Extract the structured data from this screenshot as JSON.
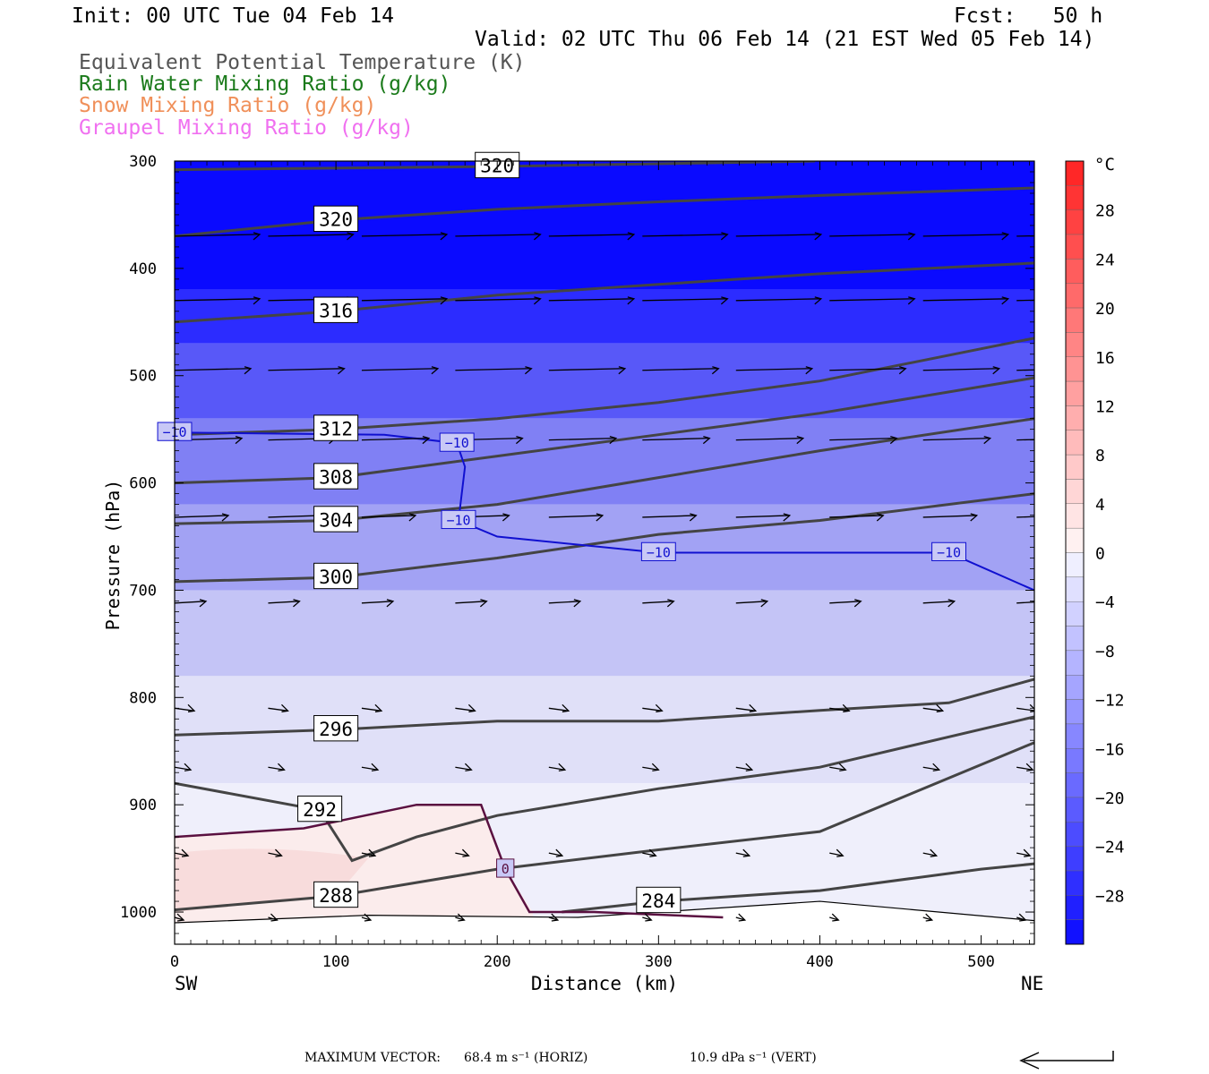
{
  "header": {
    "init": "Init: 00 UTC Tue 04 Feb 14",
    "fcst": "Fcst:   50 h",
    "valid": "Valid: 02 UTC Thu 06 Feb 14 (21 EST Wed 05 Feb 14)"
  },
  "legend": [
    {
      "label": "Equivalent Potential Temperature (K)",
      "color": "#555555"
    },
    {
      "label": "Rain Water Mixing Ratio (g/kg)",
      "color": "#1a7a1a"
    },
    {
      "label": "Snow Mixing Ratio (g/kg)",
      "color": "#f0905a"
    },
    {
      "label": "Graupel Mixing Ratio (g/kg)",
      "color": "#f070f0"
    }
  ],
  "chart_data": {
    "type": "cross-section",
    "xlabel": "Distance (km)",
    "ylabel": "Pressure (hPa)",
    "x_ticks": [
      "0",
      "100",
      "200",
      "300",
      "400",
      "500"
    ],
    "y_ticks": [
      "300",
      "400",
      "500",
      "600",
      "700",
      "800",
      "900",
      "1000"
    ],
    "xlim": [
      0,
      533
    ],
    "ylim": [
      1030,
      300
    ],
    "left_end": "SW",
    "right_end": "NE",
    "colorbar": {
      "unit": "°C",
      "labels": [
        "28",
        "24",
        "20",
        "16",
        "12",
        "8",
        "4",
        "0",
        "−4",
        "−8",
        "−12",
        "−16",
        "−20",
        "−24",
        "−28"
      ],
      "range": [
        -32,
        32
      ],
      "colors_warm": "#ff2020",
      "colors_cold": "#0a0aff"
    },
    "theta_e_contours": [
      {
        "label": "320",
        "points": [
          [
            0,
            370
          ],
          [
            100,
            355
          ],
          [
            200,
            345
          ],
          [
            300,
            338
          ],
          [
            400,
            332
          ],
          [
            533,
            325
          ]
        ]
      },
      {
        "label": "320",
        "points": [
          [
            0,
            308
          ],
          [
            200,
            305
          ],
          [
            397,
            300
          ]
        ]
      },
      {
        "label": "316",
        "points": [
          [
            0,
            450
          ],
          [
            100,
            440
          ],
          [
            200,
            425
          ],
          [
            300,
            415
          ],
          [
            400,
            405
          ],
          [
            533,
            395
          ]
        ]
      },
      {
        "label": "312",
        "points": [
          [
            0,
            555
          ],
          [
            100,
            550
          ],
          [
            200,
            540
          ],
          [
            300,
            525
          ],
          [
            400,
            505
          ],
          [
            533,
            465
          ]
        ]
      },
      {
        "label": "308",
        "points": [
          [
            0,
            600
          ],
          [
            100,
            595
          ],
          [
            200,
            575
          ],
          [
            300,
            555
          ],
          [
            400,
            535
          ],
          [
            533,
            502
          ]
        ]
      },
      {
        "label": "304",
        "points": [
          [
            0,
            638
          ],
          [
            100,
            635
          ],
          [
            200,
            620
          ],
          [
            300,
            595
          ],
          [
            400,
            570
          ],
          [
            533,
            540
          ]
        ]
      },
      {
        "label": "300",
        "points": [
          [
            0,
            692
          ],
          [
            100,
            688
          ],
          [
            200,
            670
          ],
          [
            300,
            648
          ],
          [
            400,
            635
          ],
          [
            533,
            610
          ]
        ]
      },
      {
        "label": "296",
        "points": [
          [
            0,
            835
          ],
          [
            100,
            830
          ],
          [
            200,
            822
          ],
          [
            300,
            822
          ],
          [
            400,
            812
          ],
          [
            480,
            805
          ],
          [
            533,
            783
          ]
        ]
      },
      {
        "label": "292",
        "points": [
          [
            0,
            880
          ],
          [
            90,
            905
          ],
          [
            110,
            952
          ],
          [
            150,
            930
          ],
          [
            200,
            910
          ],
          [
            300,
            885
          ],
          [
            400,
            865
          ],
          [
            533,
            818
          ]
        ]
      },
      {
        "label": "288",
        "points": [
          [
            0,
            998
          ],
          [
            100,
            985
          ],
          [
            200,
            960
          ],
          [
            300,
            942
          ],
          [
            400,
            925
          ],
          [
            533,
            842
          ]
        ]
      },
      {
        "label": "284",
        "points": [
          [
            240,
            1000
          ],
          [
            300,
            990
          ],
          [
            400,
            980
          ],
          [
            500,
            960
          ],
          [
            533,
            955
          ]
        ]
      }
    ],
    "isotherm_minus10_C": {
      "label": "−10",
      "points": [
        [
          0,
          553
        ],
        [
          130,
          555
        ],
        [
          175,
          563
        ],
        [
          180,
          585
        ],
        [
          176,
          635
        ],
        [
          200,
          650
        ],
        [
          300,
          665
        ],
        [
          400,
          665
        ],
        [
          480,
          665
        ],
        [
          533,
          700
        ]
      ]
    },
    "zero_C_isotherm": {
      "label": "0",
      "points": [
        [
          0,
          930
        ],
        [
          80,
          922
        ],
        [
          150,
          900
        ],
        [
          190,
          900
        ],
        [
          205,
          960
        ],
        [
          220,
          1000
        ],
        [
          260,
          1000
        ],
        [
          340,
          1005
        ]
      ]
    },
    "footer": {
      "max_vector_label": "MAXIMUM VECTOR:",
      "horiz": "68.4 m s⁻¹ (HORIZ)",
      "vert": "10.9 dPa s⁻¹ (VERT)"
    }
  }
}
